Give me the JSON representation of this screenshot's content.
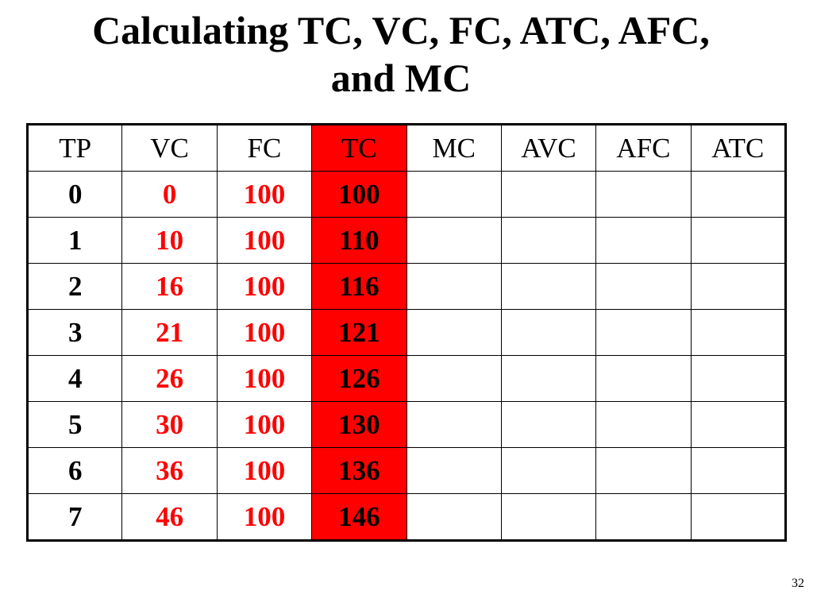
{
  "slide": {
    "title_line1": "Calculating TC, VC, FC, ATC, AFC,",
    "title_line2": "and MC",
    "page_number": "32"
  },
  "colors": {
    "tc_column_fill": "#ff0000",
    "vc_fc_text": "#ff0000",
    "border": "#000000"
  },
  "table": {
    "headers": [
      "TP",
      "VC",
      "FC",
      "TC",
      "MC",
      "AVC",
      "AFC",
      "ATC"
    ],
    "rows": [
      [
        "0",
        "0",
        "100",
        "100",
        "",
        "",
        "",
        ""
      ],
      [
        "1",
        "10",
        "100",
        "110",
        "",
        "",
        "",
        ""
      ],
      [
        "2",
        "16",
        "100",
        "116",
        "",
        "",
        "",
        ""
      ],
      [
        "3",
        "21",
        "100",
        "121",
        "",
        "",
        "",
        ""
      ],
      [
        "4",
        "26",
        "100",
        "126",
        "",
        "",
        "",
        ""
      ],
      [
        "5",
        "30",
        "100",
        "130",
        "",
        "",
        "",
        ""
      ],
      [
        "6",
        "36",
        "100",
        "136",
        "",
        "",
        "",
        ""
      ],
      [
        "7",
        "46",
        "100",
        "146",
        "",
        "",
        "",
        ""
      ]
    ]
  }
}
